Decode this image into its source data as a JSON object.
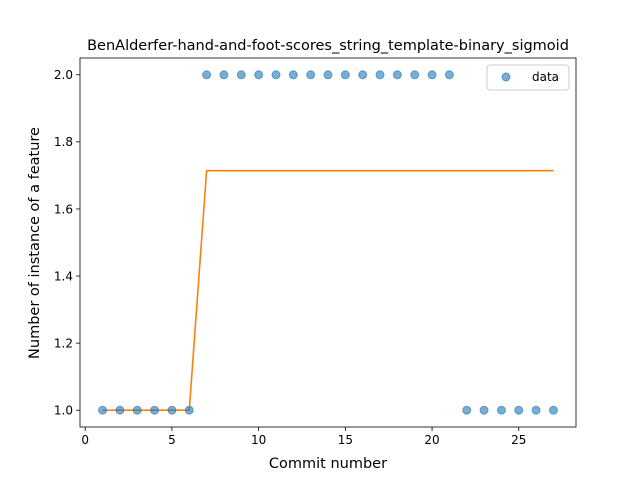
{
  "chart_data": {
    "type": "scatter",
    "title": "BenAlderfer-hand-and-foot-scores_string_template-binary_sigmoid",
    "xlabel": "Commit number",
    "ylabel": "Number of instance of a feature",
    "xlim": [
      -0.3,
      28.3
    ],
    "ylim": [
      0.95,
      2.05
    ],
    "x_ticks": [
      0,
      5,
      10,
      15,
      20,
      25
    ],
    "y_ticks": [
      1.0,
      1.2,
      1.4,
      1.6,
      1.8,
      2.0
    ],
    "x_tick_labels": [
      "0",
      "5",
      "10",
      "15",
      "20",
      "25"
    ],
    "y_tick_labels": [
      "1.0",
      "1.2",
      "1.4",
      "1.6",
      "1.8",
      "2.0"
    ],
    "legend": {
      "placement": "top-right",
      "entries": [
        "data"
      ]
    },
    "grid": false,
    "colors": {
      "data": "#1f77b4",
      "fit": "#ff7f0e"
    },
    "series": [
      {
        "name": "data",
        "kind": "scatter",
        "x": [
          1,
          2,
          3,
          4,
          5,
          6,
          7,
          8,
          9,
          10,
          11,
          12,
          13,
          14,
          15,
          16,
          17,
          18,
          19,
          20,
          21,
          22,
          23,
          24,
          25,
          26,
          27
        ],
        "y": [
          1,
          1,
          1,
          1,
          1,
          1,
          2,
          2,
          2,
          2,
          2,
          2,
          2,
          2,
          2,
          2,
          2,
          2,
          2,
          2,
          2,
          1,
          1,
          1,
          1,
          1,
          1
        ]
      },
      {
        "kind": "line",
        "x": [
          1,
          2,
          3,
          4,
          5,
          6,
          7,
          8,
          9,
          10,
          11,
          12,
          13,
          14,
          15,
          16,
          17,
          18,
          19,
          20,
          21,
          22,
          23,
          24,
          25,
          26,
          27
        ],
        "y": [
          1,
          1,
          1,
          1,
          1,
          1,
          1.714,
          1.714,
          1.714,
          1.714,
          1.714,
          1.714,
          1.714,
          1.714,
          1.714,
          1.714,
          1.714,
          1.714,
          1.714,
          1.714,
          1.714,
          1.714,
          1.714,
          1.714,
          1.714,
          1.714,
          1.714
        ]
      }
    ]
  }
}
